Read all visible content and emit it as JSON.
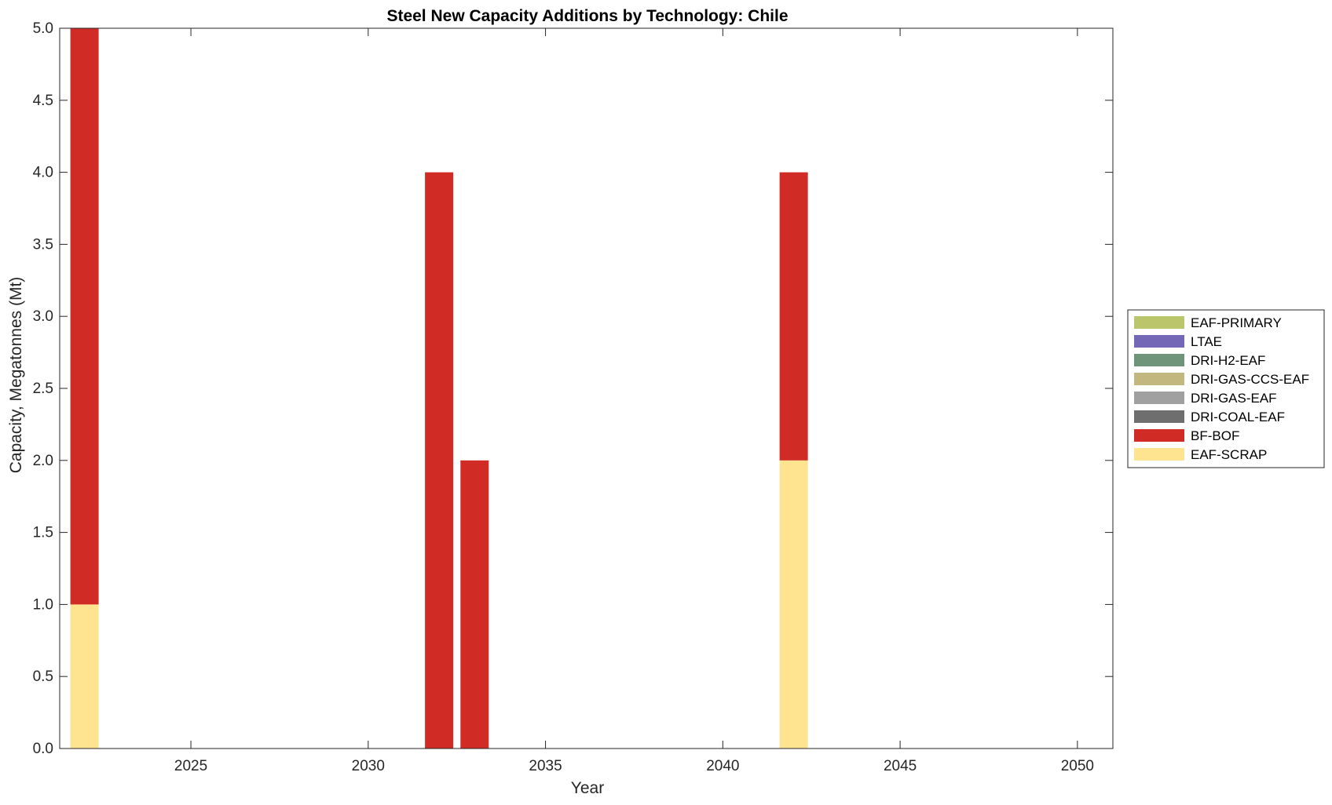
{
  "chart_data": {
    "type": "bar",
    "stacked": true,
    "title": "Steel New Capacity Additions by Technology: Chile",
    "xlabel": "Year",
    "ylabel": "Capacity, Megatonnes (Mt)",
    "xlim": [
      2021.3,
      2051
    ],
    "ylim": [
      0,
      5
    ],
    "xticks": [
      "2025",
      "2030",
      "2035",
      "2040",
      "2045",
      "2050"
    ],
    "yticks": [
      "0.0",
      "0.5",
      "1.0",
      "1.5",
      "2.0",
      "2.5",
      "3.0",
      "3.5",
      "4.0",
      "4.5",
      "5.0"
    ],
    "grid": false,
    "legend_position": "right",
    "x": [
      2022,
      2032,
      2033,
      2042
    ],
    "series": [
      {
        "name": "EAF-SCRAP",
        "color": "#FEE391",
        "values": [
          1,
          0,
          0,
          2
        ]
      },
      {
        "name": "BF-BOF",
        "color": "#D12B26",
        "values": [
          4,
          4,
          2,
          2
        ]
      },
      {
        "name": "DRI-COAL-EAF",
        "color": "#6E6E6E",
        "values": [
          0,
          0,
          0,
          0
        ]
      },
      {
        "name": "DRI-GAS-EAF",
        "color": "#A0A0A0",
        "values": [
          0,
          0,
          0,
          0
        ]
      },
      {
        "name": "DRI-GAS-CCS-EAF",
        "color": "#C2B77F",
        "values": [
          0,
          0,
          0,
          0
        ]
      },
      {
        "name": "DRI-H2-EAF",
        "color": "#6F9479",
        "values": [
          0,
          0,
          0,
          0
        ]
      },
      {
        "name": "LTAE",
        "color": "#7368B5",
        "values": [
          0,
          0,
          0,
          0
        ]
      },
      {
        "name": "EAF-PRIMARY",
        "color": "#BBC66C",
        "values": [
          0,
          0,
          0,
          0
        ]
      }
    ],
    "legend_order": [
      "EAF-PRIMARY",
      "LTAE",
      "DRI-H2-EAF",
      "DRI-GAS-CCS-EAF",
      "DRI-GAS-EAF",
      "DRI-COAL-EAF",
      "BF-BOF",
      "EAF-SCRAP"
    ]
  }
}
